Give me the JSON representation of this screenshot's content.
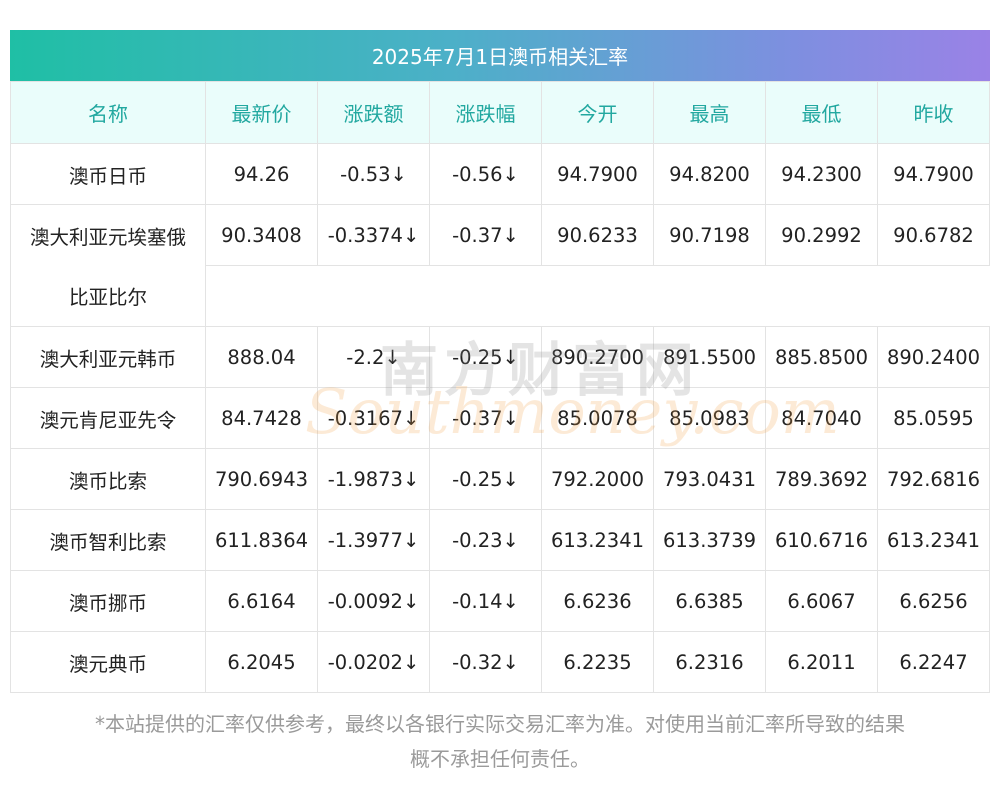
{
  "title": "2025年7月1日澳币相关汇率",
  "columns": [
    "名称",
    "最新价",
    "涨跌额",
    "涨跌幅",
    "今开",
    "最高",
    "最低",
    "昨收"
  ],
  "rows": [
    {
      "name": "澳币日币",
      "latest": "94.26",
      "change": "-0.53↓",
      "pct": "-0.56↓",
      "open": "94.7900",
      "high": "94.8200",
      "low": "94.2300",
      "prev": "94.7900"
    },
    {
      "name": "澳大利亚元埃塞俄",
      "name_cont": "比亚比尔",
      "latest": "90.3408",
      "change": "-0.3374↓",
      "pct": "-0.37↓",
      "open": "90.6233",
      "high": "90.7198",
      "low": "90.2992",
      "prev": "90.6782"
    },
    {
      "name": "澳大利亚元韩币",
      "latest": "888.04",
      "change": "-2.2↓",
      "pct": "-0.25↓",
      "open": "890.2700",
      "high": "891.5500",
      "low": "885.8500",
      "prev": "890.2400"
    },
    {
      "name": "澳元肯尼亚先令",
      "latest": "84.7428",
      "change": "-0.3167↓",
      "pct": "-0.37↓",
      "open": "85.0078",
      "high": "85.0983",
      "low": "84.7040",
      "prev": "85.0595"
    },
    {
      "name": "澳币比索",
      "latest": "790.6943",
      "change": "-1.9873↓",
      "pct": "-0.25↓",
      "open": "792.2000",
      "high": "793.0431",
      "low": "789.3692",
      "prev": "792.6816"
    },
    {
      "name": "澳币智利比索",
      "latest": "611.8364",
      "change": "-1.3977↓",
      "pct": "-0.23↓",
      "open": "613.2341",
      "high": "613.3739",
      "low": "610.6716",
      "prev": "613.2341"
    },
    {
      "name": "澳币挪币",
      "latest": "6.6164",
      "change": "-0.0092↓",
      "pct": "-0.14↓",
      "open": "6.6236",
      "high": "6.6385",
      "low": "6.6067",
      "prev": "6.6256"
    },
    {
      "name": "澳元典币",
      "latest": "6.2045",
      "change": "-0.0202↓",
      "pct": "-0.32↓",
      "open": "6.2235",
      "high": "6.2316",
      "low": "6.2011",
      "prev": "6.2247"
    }
  ],
  "footer_line1": "*本站提供的汇率仅供参考，最终以各银行实际交易汇率为准。对使用当前汇率所导致的结果",
  "footer_line2": "概不承担任何责任。",
  "watermark": {
    "cn": "南方财富网",
    "en": "Southmoney.com"
  },
  "colors": {
    "header_text": "#22a8a0",
    "header_bg": "#eafdfb",
    "positive_value": "#2a8a26",
    "gradient_start": "#1fbfa5",
    "gradient_end": "#9a82e6"
  }
}
